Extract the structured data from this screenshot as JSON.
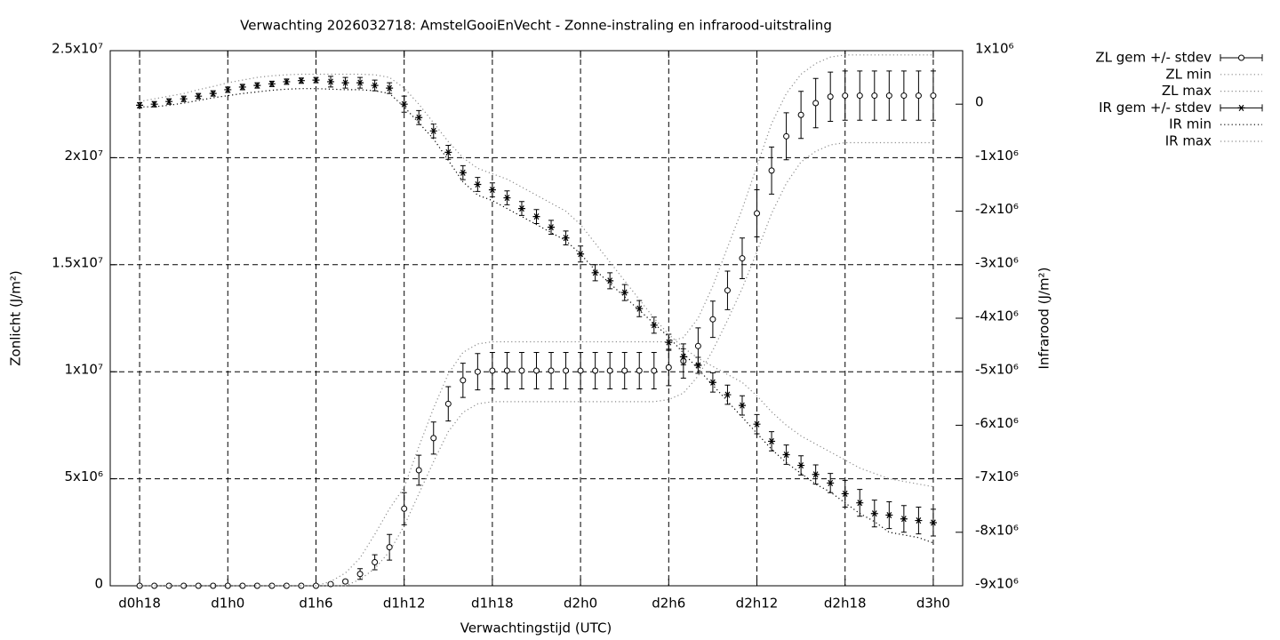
{
  "chart_data": {
    "type": "errorbar",
    "title": "Verwachting 2026032718: AmstelGooiEnVecht - Zonne-instraling en infrarood-uitstraling",
    "xlabel": "Verwachtingstijd (UTC)",
    "ylabel": "Zonlicht (J/m²)",
    "y2label": "Infrarood (J/m²)",
    "xlim": [
      16,
      74
    ],
    "xticks": [
      {
        "value": 18,
        "label": "d0h18"
      },
      {
        "value": 24,
        "label": "d1h0"
      },
      {
        "value": 30,
        "label": "d1h6"
      },
      {
        "value": 36,
        "label": "d1h12"
      },
      {
        "value": 42,
        "label": "d1h18"
      },
      {
        "value": 48,
        "label": "d2h0"
      },
      {
        "value": 54,
        "label": "d2h6"
      },
      {
        "value": 60,
        "label": "d2h12"
      },
      {
        "value": 66,
        "label": "d2h18"
      },
      {
        "value": 72,
        "label": "d3h0"
      }
    ],
    "ylim": [
      0,
      25000000.0
    ],
    "yticks": [
      0,
      {
        "value": 5000000.0,
        "label": "5x10⁶"
      },
      {
        "value": 10000000.0,
        "label": "1x10⁷"
      },
      {
        "value": 15000000.0,
        "label": "1.5x10⁷"
      },
      {
        "value": 20000000.0,
        "label": "2x10⁷"
      },
      {
        "value": 25000000.0,
        "label": "2.5x10⁷"
      }
    ],
    "y2lim": [
      -9000000.0,
      1000000.0
    ],
    "y2ticks": [
      {
        "value": 1000000.0,
        "label": "1x10⁶"
      },
      0,
      {
        "value": -1000000.0,
        "label": "-1x10⁶"
      },
      {
        "value": -2000000.0,
        "label": "-2x10⁶"
      },
      {
        "value": -3000000.0,
        "label": "-3x10⁶"
      },
      {
        "value": -4000000.0,
        "label": "-4x10⁶"
      },
      {
        "value": -5000000.0,
        "label": "-5x10⁶"
      },
      {
        "value": -6000000.0,
        "label": "-6x10⁶"
      },
      {
        "value": -7000000.0,
        "label": "-7x10⁶"
      },
      {
        "value": -8000000.0,
        "label": "-8x10⁶"
      },
      {
        "value": -9000000.0,
        "label": "-9x10⁶"
      }
    ],
    "grid": true,
    "legend": "outside-top-right",
    "x": [
      18,
      19,
      20,
      21,
      22,
      23,
      24,
      25,
      26,
      27,
      28,
      29,
      30,
      31,
      32,
      33,
      34,
      35,
      36,
      37,
      38,
      39,
      40,
      41,
      42,
      43,
      44,
      45,
      46,
      47,
      48,
      49,
      50,
      51,
      52,
      53,
      54,
      55,
      56,
      57,
      58,
      59,
      60,
      61,
      62,
      63,
      64,
      65,
      66,
      67,
      68,
      69,
      70,
      71,
      72
    ],
    "series": [
      {
        "name": "ZL gem +/- stdev",
        "color": "#000000",
        "style": "errorbars",
        "marker": "circle",
        "values": [
          0,
          0,
          0,
          0,
          0,
          0,
          0,
          0,
          0,
          0,
          0,
          0,
          0,
          80000.0,
          200000.0,
          550000.0,
          1100000.0,
          1800000.0,
          3600000.0,
          5400000.0,
          6900000.0,
          8500000.0,
          9600000.0,
          10000000.0,
          10050000.0,
          10050000.0,
          10050000.0,
          10050000.0,
          10050000.0,
          10050000.0,
          10050000.0,
          10050000.0,
          10050000.0,
          10050000.0,
          10050000.0,
          10050000.0,
          10200000.0,
          10500000.0,
          11200000.0,
          12450000.0,
          13800000.0,
          15300000.0,
          17400000.0,
          19400000.0,
          21000000.0,
          22000000.0,
          22550000.0,
          22850000.0,
          22900000.0,
          22900000.0,
          22900000.0,
          22900000.0,
          22900000.0,
          22900000.0,
          22900000.0
        ],
        "errors": [
          0,
          0,
          0,
          0,
          0,
          0,
          0,
          0,
          0,
          0,
          0,
          0,
          0,
          30000.0,
          80000.0,
          250000.0,
          350000.0,
          600000.0,
          750000.0,
          700000.0,
          750000.0,
          800000.0,
          800000.0,
          850000.0,
          850000.0,
          850000.0,
          850000.0,
          850000.0,
          850000.0,
          850000.0,
          850000.0,
          850000.0,
          850000.0,
          850000.0,
          850000.0,
          850000.0,
          850000.0,
          800000.0,
          850000.0,
          850000.0,
          900000.0,
          950000.0,
          1100000.0,
          1100000.0,
          1100000.0,
          1100000.0,
          1150000.0,
          1150000.0,
          1150000.0,
          1150000.0,
          1150000.0,
          1150000.0,
          1150000.0,
          1150000.0,
          1150000.0
        ]
      },
      {
        "name": "ZL min",
        "color": "#8c8c8c",
        "style": "dots",
        "values": [
          0,
          0,
          0,
          0,
          0,
          0,
          0,
          0,
          0,
          0,
          0,
          0,
          0,
          0,
          0,
          300000.0,
          800000.0,
          1600000.0,
          2800000.0,
          4300000.0,
          5800000.0,
          7200000.0,
          8100000.0,
          8500000.0,
          8600000.0,
          8600000.0,
          8600000.0,
          8600000.0,
          8600000.0,
          8600000.0,
          8600000.0,
          8600000.0,
          8600000.0,
          8600000.0,
          8600000.0,
          8600000.0,
          8700000.0,
          9000000.0,
          9800000.0,
          11000000.0,
          12400000.0,
          13900000.0,
          15600000.0,
          17400000.0,
          18800000.0,
          19800000.0,
          20300000.0,
          20600000.0,
          20700000.0,
          20700000.0,
          20700000.0,
          20700000.0,
          20700000.0,
          20700000.0,
          20700000.0
        ]
      },
      {
        "name": "ZL max",
        "color": "#8c8c8c",
        "style": "dots",
        "values": [
          0,
          0,
          0,
          0,
          0,
          0,
          0,
          0,
          0,
          0,
          0,
          0,
          0,
          200000.0,
          600000.0,
          1300000.0,
          2400000.0,
          3600000.0,
          4600000.0,
          6500000.0,
          8300000.0,
          9900000.0,
          10900000.0,
          11300000.0,
          11400000.0,
          11400000.0,
          11400000.0,
          11400000.0,
          11400000.0,
          11400000.0,
          11400000.0,
          11400000.0,
          11400000.0,
          11400000.0,
          11400000.0,
          11400000.0,
          11400000.0,
          11600000.0,
          12500000.0,
          14000000.0,
          15800000.0,
          17600000.0,
          19600000.0,
          21600000.0,
          23000000.0,
          23900000.0,
          24400000.0,
          24700000.0,
          24800000.0,
          24800000.0,
          24800000.0,
          24800000.0,
          24800000.0,
          24800000.0,
          24800000.0
        ]
      },
      {
        "name": "IR gem +/- stdev",
        "color": "#000000",
        "style": "errorbars",
        "marker": "asterisk",
        "axis": "y2",
        "values": [
          -20000.0,
          0,
          50000.0,
          100000.0,
          150000.0,
          200000.0,
          270000.0,
          320000.0,
          350000.0,
          380000.0,
          420000.0,
          440000.0,
          450000.0,
          420000.0,
          400000.0,
          400000.0,
          350000.0,
          300000.0,
          0,
          -250000.0,
          -500000.0,
          -900000.0,
          -1280000.0,
          -1500000.0,
          -1600000.0,
          -1750000.0,
          -1950000.0,
          -2100000.0,
          -2300000.0,
          -2500000.0,
          -2800000.0,
          -3150000.0,
          -3300000.0,
          -3520000.0,
          -3820000.0,
          -4130000.0,
          -4450000.0,
          -4720000.0,
          -4880000.0,
          -5200000.0,
          -5430000.0,
          -5630000.0,
          -5980000.0,
          -6300000.0,
          -6550000.0,
          -6750000.0,
          -6920000.0,
          -7080000.0,
          -7280000.0,
          -7450000.0,
          -7650000.0,
          -7680000.0,
          -7750000.0,
          -7780000.0,
          -7820000.0
        ],
        "errors": [
          50000.0,
          50000.0,
          50000.0,
          50000.0,
          50000.0,
          50000.0,
          50000.0,
          50000.0,
          50000.0,
          50000.0,
          50000.0,
          50000.0,
          50000.0,
          100000.0,
          100000.0,
          100000.0,
          100000.0,
          100000.0,
          150000.0,
          130000.0,
          130000.0,
          130000.0,
          130000.0,
          130000.0,
          130000.0,
          130000.0,
          130000.0,
          130000.0,
          130000.0,
          130000.0,
          150000.0,
          150000.0,
          150000.0,
          150000.0,
          150000.0,
          150000.0,
          150000.0,
          150000.0,
          150000.0,
          180000.0,
          180000.0,
          180000.0,
          180000.0,
          180000.0,
          180000.0,
          180000.0,
          180000.0,
          180000.0,
          250000.0,
          250000.0,
          250000.0,
          250000.0,
          250000.0,
          250000.0,
          250000.0
        ]
      },
      {
        "name": "IR min",
        "color": "#000000",
        "style": "dots",
        "axis": "y2",
        "values": [
          -50000.0,
          -50000.0,
          -20000.0,
          20000.0,
          70000.0,
          120000.0,
          160000.0,
          200000.0,
          230000.0,
          260000.0,
          280000.0,
          290000.0,
          290000.0,
          280000.0,
          270000.0,
          270000.0,
          250000.0,
          200000.0,
          -50000.0,
          -350000.0,
          -650000.0,
          -1050000.0,
          -1450000.0,
          -1700000.0,
          -1800000.0,
          -1950000.0,
          -2100000.0,
          -2250000.0,
          -2400000.0,
          -2550000.0,
          -2800000.0,
          -3100000.0,
          -3350000.0,
          -3600000.0,
          -3850000.0,
          -4100000.0,
          -4350000.0,
          -4650000.0,
          -4950000.0,
          -5250000.0,
          -5550000.0,
          -5850000.0,
          -6150000.0,
          -6450000.0,
          -6700000.0,
          -6900000.0,
          -7100000.0,
          -7250000.0,
          -7450000.0,
          -7650000.0,
          -7800000.0,
          -8000000.0,
          -8050000.0,
          -8100000.0,
          -8200000.0
        ]
      },
      {
        "name": "IR max",
        "color": "#8c8c8c",
        "style": "dots",
        "axis": "y2",
        "values": [
          50000.0,
          100000.0,
          150000.0,
          200000.0,
          270000.0,
          330000.0,
          400000.0,
          450000.0,
          500000.0,
          530000.0,
          550000.0,
          560000.0,
          560000.0,
          560000.0,
          560000.0,
          560000.0,
          550000.0,
          500000.0,
          300000.0,
          0,
          -350000.0,
          -700000.0,
          -1000000.0,
          -1200000.0,
          -1300000.0,
          -1400000.0,
          -1550000.0,
          -1700000.0,
          -1850000.0,
          -2000000.0,
          -2250000.0,
          -2600000.0,
          -2950000.0,
          -3300000.0,
          -3650000.0,
          -4000000.0,
          -4300000.0,
          -4550000.0,
          -4750000.0,
          -4900000.0,
          -5050000.0,
          -5200000.0,
          -5450000.0,
          -5750000.0,
          -6000000.0,
          -6200000.0,
          -6350000.0,
          -6500000.0,
          -6650000.0,
          -6800000.0,
          -6900000.0,
          -7000000.0,
          -7050000.0,
          -7100000.0,
          -7150000.0
        ]
      }
    ]
  }
}
